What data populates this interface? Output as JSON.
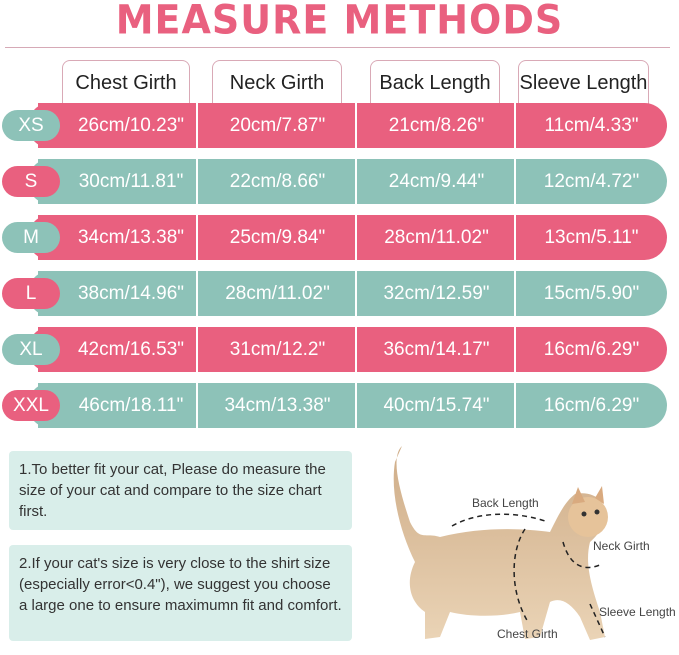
{
  "title": "MEASURE METHODS",
  "colors": {
    "pink": "#e9607f",
    "teal": "#8dc2b8",
    "note_bg": "#d9eeea"
  },
  "columns": [
    "Chest Girth",
    "Neck Girth",
    "Back Length",
    "Sleeve Length"
  ],
  "rows": [
    {
      "size": "XS",
      "values": [
        "26cm/10.23\"",
        "20cm/7.87\"",
        "21cm/8.26\"",
        "11cm/4.33\""
      ]
    },
    {
      "size": "S",
      "values": [
        "30cm/11.81\"",
        "22cm/8.66\"",
        "24cm/9.44\"",
        "12cm/4.72\""
      ]
    },
    {
      "size": "M",
      "values": [
        "34cm/13.38\"",
        "25cm/9.84\"",
        "28cm/11.02\"",
        "13cm/5.11\""
      ]
    },
    {
      "size": "L",
      "values": [
        "38cm/14.96\"",
        "28cm/11.02\"",
        "32cm/12.59\"",
        "15cm/5.90\""
      ]
    },
    {
      "size": "XL",
      "values": [
        "42cm/16.53\"",
        "31cm/12.2\"",
        "36cm/14.17\"",
        "16cm/6.29\""
      ]
    },
    {
      "size": "XXL",
      "values": [
        "46cm/18.11\"",
        "34cm/13.38\"",
        "40cm/15.74\"",
        "16cm/6.29\""
      ]
    }
  ],
  "notes": [
    "1.To better fit your cat, Please do measure the size of your cat and compare to the size chart first.",
    "2.If your cat's size is very close to the shirt size (especially error<0.4\"), we suggest you choose a large one to ensure maximumn fit and comfort."
  ],
  "cat_labels": {
    "back": "Back Length",
    "neck": "Neck Girth",
    "sleeve": "Sleeve Length",
    "chest": "Chest Girth"
  }
}
